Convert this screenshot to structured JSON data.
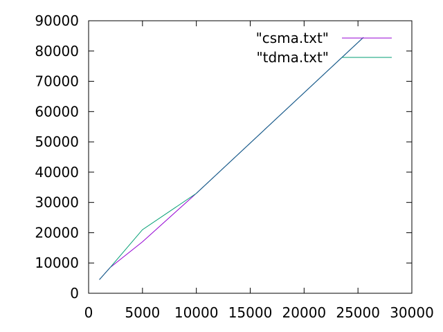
{
  "chart_data": {
    "type": "line",
    "xlim": [
      0,
      30000
    ],
    "ylim": [
      0,
      90000
    ],
    "x_ticks": [
      0,
      5000,
      10000,
      15000,
      20000,
      25000,
      30000
    ],
    "y_ticks": [
      0,
      10000,
      20000,
      30000,
      40000,
      50000,
      60000,
      70000,
      80000,
      90000
    ],
    "x_tick_labels": [
      "0",
      "5000",
      "10000",
      "15000",
      "20000",
      "25000",
      "30000"
    ],
    "y_tick_labels": [
      "0",
      "10000",
      "20000",
      "30000",
      "40000",
      "50000",
      "60000",
      "70000",
      "80000",
      "90000"
    ],
    "grid": false,
    "legend_position": "top-right",
    "series": [
      {
        "name": "\"csma.txt\"",
        "color": "#9400d3",
        "points": [
          [
            1000,
            4500
          ],
          [
            2000,
            8500
          ],
          [
            5000,
            17000
          ],
          [
            10000,
            33000
          ],
          [
            25500,
            84500
          ]
        ]
      },
      {
        "name": "\"tdma.txt\"",
        "color": "#009e73",
        "points": [
          [
            1000,
            4500
          ],
          [
            2000,
            8500
          ],
          [
            5000,
            21000
          ],
          [
            10000,
            33000
          ],
          [
            25500,
            84500
          ]
        ]
      }
    ],
    "overlap_color": "#1f5f8f"
  }
}
